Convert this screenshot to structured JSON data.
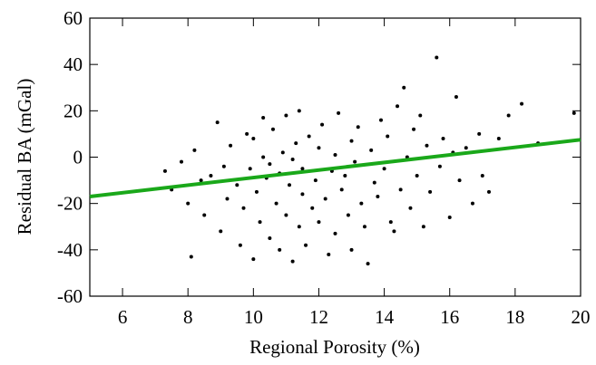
{
  "chart_data": {
    "type": "scatter",
    "x_label": "Regional Porosity (%)",
    "y_label": "Residual BA (mGal)",
    "xlim": [
      5,
      20
    ],
    "ylim": [
      -60,
      60
    ],
    "xticks": [
      6,
      8,
      10,
      12,
      14,
      16,
      18,
      20
    ],
    "yticks": [
      -60,
      -40,
      -20,
      0,
      20,
      40,
      60
    ],
    "series": [
      {
        "color": "#000000",
        "x": [
          7.3,
          7.5,
          7.8,
          8.0,
          8.1,
          8.2,
          8.4,
          8.5,
          8.7,
          8.9,
          9.0,
          9.1,
          9.2,
          9.3,
          9.5,
          9.6,
          9.7,
          9.8,
          9.9,
          10.0,
          10.0,
          10.1,
          10.2,
          10.3,
          10.3,
          10.4,
          10.5,
          10.5,
          10.6,
          10.7,
          10.8,
          10.8,
          10.9,
          11.0,
          11.0,
          11.1,
          11.2,
          11.2,
          11.3,
          11.4,
          11.4,
          11.5,
          11.5,
          11.6,
          11.7,
          11.8,
          11.9,
          12.0,
          12.0,
          12.1,
          12.2,
          12.3,
          12.4,
          12.5,
          12.5,
          12.6,
          12.7,
          12.8,
          12.9,
          13.0,
          13.0,
          13.1,
          13.2,
          13.3,
          13.4,
          13.5,
          13.6,
          13.7,
          13.8,
          13.9,
          14.0,
          14.1,
          14.2,
          14.3,
          14.4,
          14.5,
          14.6,
          14.7,
          14.8,
          14.9,
          15.0,
          15.1,
          15.2,
          15.3,
          15.4,
          15.6,
          15.7,
          15.8,
          16.0,
          16.1,
          16.2,
          16.3,
          16.5,
          16.7,
          16.9,
          17.0,
          17.2,
          17.5,
          17.8,
          18.2,
          18.7,
          19.8
        ],
        "values": [
          -6,
          -14,
          -2,
          -20,
          -43,
          3,
          -10,
          -25,
          -8,
          15,
          -32,
          -4,
          -18,
          5,
          -12,
          -38,
          -22,
          10,
          -5,
          -44,
          8,
          -15,
          -28,
          0,
          17,
          -9,
          -35,
          -3,
          12,
          -20,
          -40,
          -7,
          2,
          -25,
          18,
          -12,
          -45,
          -1,
          6,
          -30,
          20,
          -16,
          -5,
          -38,
          9,
          -22,
          -10,
          -28,
          4,
          14,
          -18,
          -42,
          -6,
          1,
          -33,
          19,
          -14,
          -8,
          -25,
          7,
          -40,
          -2,
          13,
          -20,
          -30,
          -46,
          3,
          -11,
          -17,
          16,
          -5,
          9,
          -28,
          -32,
          22,
          -14,
          30,
          0,
          -22,
          12,
          -8,
          18,
          -30,
          5,
          -15,
          43,
          -4,
          8,
          -26,
          2,
          26,
          -10,
          4,
          -20,
          10,
          -8,
          -15,
          8,
          18,
          23,
          6,
          19
        ]
      }
    ],
    "trend_line": {
      "color": "#1aa81a",
      "x": [
        5,
        20
      ],
      "values": [
        -17,
        7.5
      ]
    }
  }
}
